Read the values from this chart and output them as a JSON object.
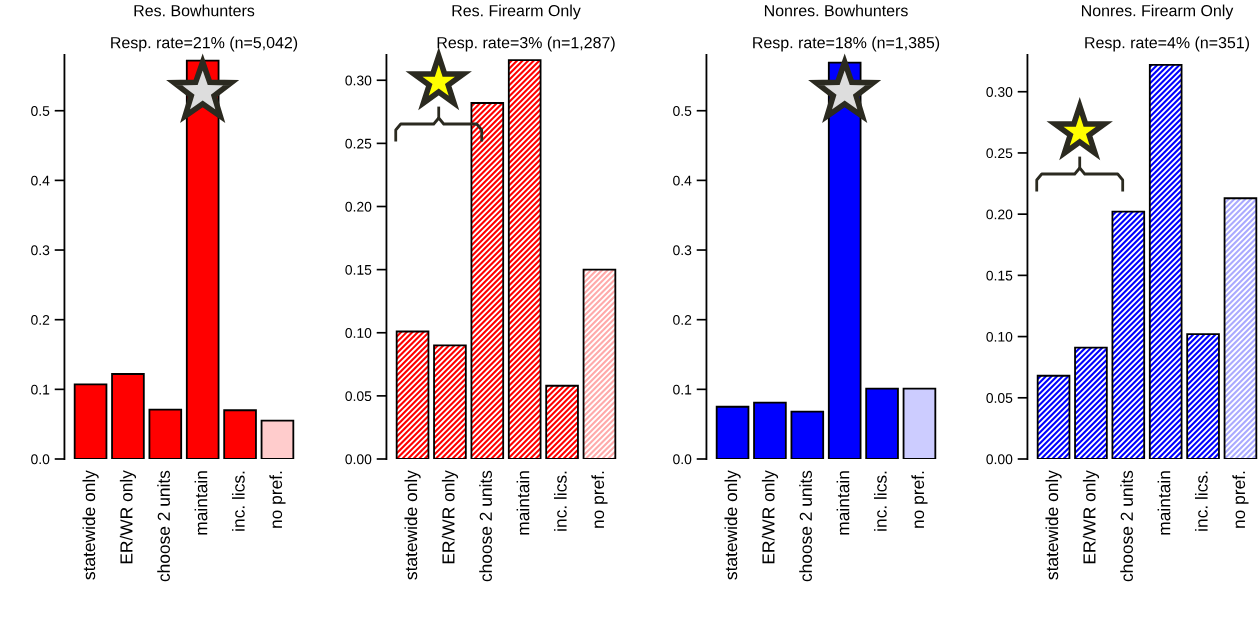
{
  "chart_data": [
    {
      "type": "bar",
      "title": "Res. Bowhunters",
      "subtitle": "Resp. rate=21% (n=5,042)",
      "categories": [
        "statewide only",
        "ER/WR only",
        "choose 2 units",
        "maintain",
        "inc. lics.",
        "no pref."
      ],
      "values": [
        0.107,
        0.122,
        0.071,
        0.572,
        0.07,
        0.055
      ],
      "colors": [
        "#ff0000",
        "#ff0000",
        "#ff0000",
        "#ff0000",
        "#ff0000",
        "#ffcccc"
      ],
      "ylim": [
        0,
        0.58
      ],
      "yticks": [
        {
          "value": 0,
          "label": "0.0"
        },
        0.1,
        0.2,
        0.3,
        0.4,
        0.5
      ],
      "grid": false,
      "legend": false
    },
    {
      "type": "bar",
      "title": "Res. Firearm Only",
      "subtitle": "Resp. rate=3% (n=1,287)",
      "categories": [
        "statewide only",
        "ER/WR only",
        "choose 2 units",
        "maintain",
        "inc. lics.",
        "no pref."
      ],
      "values": [
        0.101,
        0.09,
        0.282,
        0.316,
        0.058,
        0.15
      ],
      "colors": [
        "#ff0000",
        "#ff0000",
        "#ff0000",
        "#ff0000",
        "#ff0000",
        "#ffaaaa"
      ],
      "ylim": [
        0,
        0.32
      ],
      "yticks": [
        {
          "value": 0,
          "label": "0.00"
        },
        0.05,
        {
          "value": 0.1,
          "label": "0.10"
        },
        0.15,
        {
          "value": 0.2,
          "label": "0.20"
        },
        0.25,
        {
          "value": 0.3,
          "label": "0.30"
        }
      ],
      "grid": false,
      "legend": false
    },
    {
      "type": "bar",
      "title": "Nonres. Bowhunters",
      "subtitle": "Resp. rate=18% (n=1,385)",
      "categories": [
        "statewide only",
        "ER/WR only",
        "choose 2 units",
        "maintain",
        "inc. lics.",
        "no pref."
      ],
      "values": [
        0.075,
        0.081,
        0.068,
        0.569,
        0.101,
        0.101
      ],
      "colors": [
        "#0000ff",
        "#0000ff",
        "#0000ff",
        "#0000ff",
        "#0000ff",
        "#ccccff"
      ],
      "ylim": [
        0,
        0.58
      ],
      "yticks": [
        {
          "value": 0,
          "label": "0.0"
        },
        0.1,
        0.2,
        0.3,
        0.4,
        0.5
      ],
      "grid": false,
      "legend": false
    },
    {
      "type": "bar",
      "title": "Nonres. Firearm Only",
      "subtitle": "Resp. rate=4% (n=351)",
      "categories": [
        "statewide only",
        "ER/WR only",
        "choose 2 units",
        "maintain",
        "inc. lics.",
        "no pref."
      ],
      "values": [
        0.068,
        0.091,
        0.202,
        0.322,
        0.102,
        0.213
      ],
      "colors": [
        "#0000ff",
        "#0000ff",
        "#0000ff",
        "#0000ff",
        "#0000ff",
        "#aaaaff"
      ],
      "ylim": [
        0,
        0.33
      ],
      "yticks": [
        {
          "value": 0,
          "label": "0.00"
        },
        0.05,
        {
          "value": 0.1,
          "label": "0.10"
        },
        0.15,
        {
          "value": 0.2,
          "label": "0.20"
        },
        0.25,
        {
          "value": 0.3,
          "label": "0.30"
        }
      ],
      "grid": false,
      "legend": false
    }
  ]
}
